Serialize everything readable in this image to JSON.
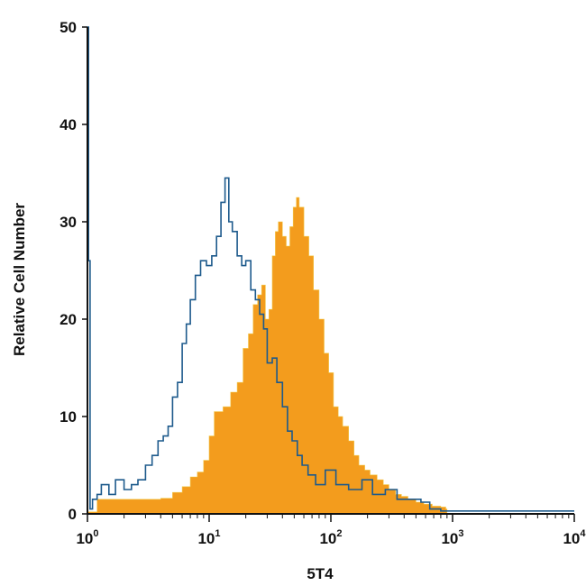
{
  "chart_data": {
    "type": "area",
    "title": "",
    "xlabel": "5T4",
    "ylabel": "Relative Cell Number",
    "x_scale": "log",
    "xlim": [
      1,
      10000
    ],
    "ylim": [
      0,
      50
    ],
    "grid": false,
    "x_ticks": [
      {
        "value": 1,
        "base": "10",
        "exp": "0"
      },
      {
        "value": 10,
        "base": "10",
        "exp": "1"
      },
      {
        "value": 100,
        "base": "10",
        "exp": "2"
      },
      {
        "value": 1000,
        "base": "10",
        "exp": "3"
      },
      {
        "value": 10000,
        "base": "10",
        "exp": "4"
      }
    ],
    "y_ticks": [
      "0",
      "10",
      "20",
      "30",
      "40",
      "50"
    ],
    "series": [
      {
        "style": "filled",
        "color": "#f39c1d",
        "points": [
          [
            1.0,
            0.2
          ],
          [
            1.2,
            1.5
          ],
          [
            2,
            1.5
          ],
          [
            3,
            1.5
          ],
          [
            4,
            1.6
          ],
          [
            5,
            2.2
          ],
          [
            6,
            2.8
          ],
          [
            7,
            3.8
          ],
          [
            8,
            4.3
          ],
          [
            9,
            5.5
          ],
          [
            10,
            8.0
          ],
          [
            11,
            10.5
          ],
          [
            13,
            11.0
          ],
          [
            15,
            12.5
          ],
          [
            17,
            13.5
          ],
          [
            19,
            17.0
          ],
          [
            21,
            18.5
          ],
          [
            23,
            21.5
          ],
          [
            25,
            22.5
          ],
          [
            27,
            23.5
          ],
          [
            29,
            20.0
          ],
          [
            31,
            21.0
          ],
          [
            33,
            26.5
          ],
          [
            35,
            29.0
          ],
          [
            37,
            30.0
          ],
          [
            40,
            28.5
          ],
          [
            43,
            27.5
          ],
          [
            46,
            29.5
          ],
          [
            49,
            31.5
          ],
          [
            52,
            32.5
          ],
          [
            55,
            31.5
          ],
          [
            60,
            28.5
          ],
          [
            66,
            26.5
          ],
          [
            72,
            23.0
          ],
          [
            80,
            20.0
          ],
          [
            88,
            16.5
          ],
          [
            96,
            14.5
          ],
          [
            105,
            11.0
          ],
          [
            115,
            10.0
          ],
          [
            125,
            9.0
          ],
          [
            140,
            7.5
          ],
          [
            155,
            6.0
          ],
          [
            170,
            5.0
          ],
          [
            190,
            4.5
          ],
          [
            210,
            4.0
          ],
          [
            240,
            3.5
          ],
          [
            270,
            3.0
          ],
          [
            300,
            2.5
          ],
          [
            340,
            2.0
          ],
          [
            380,
            1.8
          ],
          [
            430,
            1.5
          ],
          [
            500,
            1.2
          ],
          [
            580,
            1.0
          ],
          [
            680,
            0.8
          ],
          [
            800,
            0.7
          ],
          [
            880,
            0.5
          ],
          [
            900,
            0.0
          ]
        ]
      },
      {
        "style": "outline",
        "color": "#1d5a8c",
        "points": [
          [
            1.0,
            50.0
          ],
          [
            1.02,
            26.0
          ],
          [
            1.05,
            0.5
          ],
          [
            1.1,
            1.5
          ],
          [
            1.2,
            2.0
          ],
          [
            1.3,
            3.0
          ],
          [
            1.5,
            2.0
          ],
          [
            1.7,
            3.5
          ],
          [
            2.0,
            2.5
          ],
          [
            2.3,
            3.0
          ],
          [
            2.6,
            3.5
          ],
          [
            3.0,
            5.0
          ],
          [
            3.4,
            6.0
          ],
          [
            3.8,
            7.5
          ],
          [
            4.2,
            8.0
          ],
          [
            4.6,
            9.0
          ],
          [
            5.0,
            12.0
          ],
          [
            5.5,
            13.5
          ],
          [
            6.0,
            17.5
          ],
          [
            6.5,
            19.5
          ],
          [
            7.0,
            22.0
          ],
          [
            7.7,
            24.5
          ],
          [
            8.5,
            26.0
          ],
          [
            9.5,
            25.5
          ],
          [
            10.5,
            26.5
          ],
          [
            11.5,
            28.5
          ],
          [
            12.5,
            32.0
          ],
          [
            13.5,
            34.5
          ],
          [
            14.5,
            30.0
          ],
          [
            15.5,
            29.0
          ],
          [
            17.0,
            26.5
          ],
          [
            18.5,
            25.5
          ],
          [
            20.0,
            26.0
          ],
          [
            22.0,
            23.0
          ],
          [
            24.0,
            22.0
          ],
          [
            26.0,
            20.5
          ],
          [
            28.0,
            19.0
          ],
          [
            30.0,
            15.5
          ],
          [
            33.0,
            16.0
          ],
          [
            36.0,
            13.5
          ],
          [
            40.0,
            11.0
          ],
          [
            44.0,
            8.5
          ],
          [
            48.0,
            7.5
          ],
          [
            53.0,
            6.0
          ],
          [
            58.0,
            5.0
          ],
          [
            65.0,
            4.0
          ],
          [
            75.0,
            3.0
          ],
          [
            90.0,
            4.5
          ],
          [
            110.0,
            3.0
          ],
          [
            140.0,
            2.5
          ],
          [
            180.0,
            3.5
          ],
          [
            220.0,
            2.0
          ],
          [
            280.0,
            2.5
          ],
          [
            350.0,
            1.5
          ],
          [
            450.0,
            1.5
          ],
          [
            550.0,
            1.2
          ],
          [
            650.0,
            0.5
          ],
          [
            800.0,
            0.3
          ],
          [
            10000.0,
            0.3
          ]
        ]
      }
    ]
  }
}
